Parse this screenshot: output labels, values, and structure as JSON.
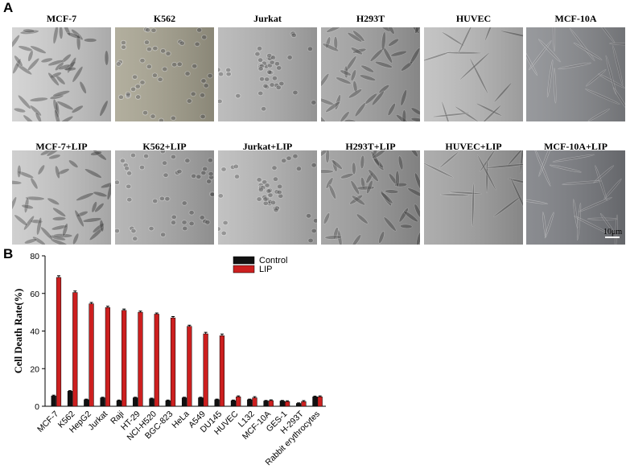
{
  "panels": {
    "a_label": "A",
    "b_label": "B"
  },
  "micrographs": {
    "row1": [
      {
        "label": "MCF-7",
        "background": "#cfcfcf",
        "cell_shape": "spindle"
      },
      {
        "label": "K562",
        "background": "#a8a491",
        "cell_shape": "round"
      },
      {
        "label": "Jurkat",
        "background": "#b4b4b4",
        "cell_shape": "round-cluster"
      },
      {
        "label": "H293T",
        "background": "#a3a3a3",
        "cell_shape": "spindle"
      },
      {
        "label": "HUVEC",
        "background": "#bdbdbd",
        "cell_shape": "elongated"
      },
      {
        "label": "MCF-10A",
        "background": "#8a8c90",
        "cell_shape": "faint"
      }
    ],
    "row2": [
      {
        "label": "MCF-7+LIP",
        "background": "#c9c9c9",
        "cell_shape": "spindle"
      },
      {
        "label": "K562+LIP",
        "background": "#adadad",
        "cell_shape": "round"
      },
      {
        "label": "Jurkat+LIP",
        "background": "#bababa",
        "cell_shape": "round-cluster"
      },
      {
        "label": "H293T+LIP",
        "background": "#9c9c9c",
        "cell_shape": "spindle"
      },
      {
        "label": "HUVEC+LIP",
        "background": "#a3a3a3",
        "cell_shape": "elongated"
      },
      {
        "label": "MCF-10A+LIP",
        "background": "#7b7d82",
        "cell_shape": "faint"
      }
    ],
    "scale_bar": "10μm"
  },
  "chart_data": {
    "type": "bar",
    "ylabel": "Cell Death Rate(%)",
    "xlabel": "",
    "ylim": [
      0,
      80
    ],
    "yticks": [
      0,
      20,
      40,
      60,
      80
    ],
    "legend_position": "top-center",
    "categories": [
      "MCF-7",
      "K562",
      "HepG2",
      "Jurkat",
      "Raji",
      "HT-29",
      "NCI-H520",
      "BGC-823",
      "HeLa",
      "A549",
      "DU145",
      "HUVEC",
      "L132",
      "MCF-10A",
      "GES-1",
      "H-293T",
      "Rabbit erythrocytes"
    ],
    "series": [
      {
        "name": "Control",
        "color": "#111111",
        "values": [
          5.5,
          8.0,
          3.5,
          4.5,
          3.0,
          4.5,
          4.0,
          3.0,
          4.5,
          4.5,
          3.5,
          3.0,
          3.5,
          2.8,
          2.8,
          1.5,
          5.0
        ],
        "errors": [
          0.4,
          0.3,
          0.3,
          0.3,
          0.3,
          0.3,
          0.3,
          0.3,
          0.3,
          0.3,
          0.3,
          0.3,
          0.3,
          0.3,
          0.3,
          0.3,
          0.4
        ]
      },
      {
        "name": "LIP",
        "color": "#cc1f1f",
        "values": [
          68.5,
          60.5,
          54.5,
          52.5,
          51.0,
          50.0,
          49.0,
          47.0,
          42.5,
          38.5,
          37.5,
          5.0,
          4.5,
          3.0,
          2.5,
          2.5,
          5.0
        ],
        "errors": [
          0.9,
          0.8,
          0.7,
          0.7,
          0.7,
          0.6,
          0.6,
          0.7,
          0.6,
          0.8,
          0.9,
          0.5,
          0.6,
          0.4,
          0.4,
          0.5,
          0.5
        ]
      }
    ]
  }
}
